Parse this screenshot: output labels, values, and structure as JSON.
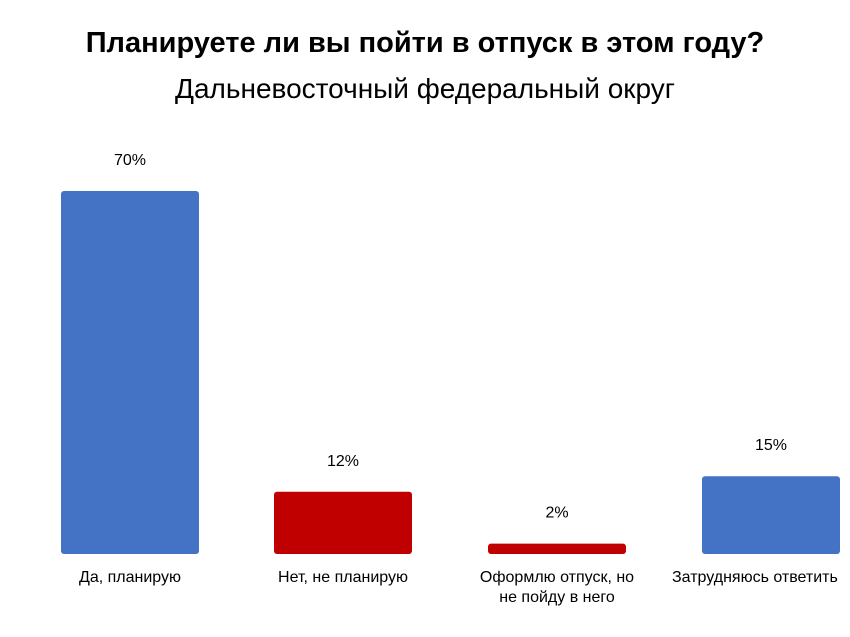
{
  "chart_data": {
    "type": "bar",
    "title": "Планируете ли вы пойти в отпуск в этом году?",
    "subtitle": "Дальневосточный федеральный округ",
    "categories": [
      [
        "Да, планирую"
      ],
      [
        "Нет, не планирую"
      ],
      [
        "Оформлю отпуск, но",
        "не пойду в него"
      ],
      [
        "Затрудняюсь ответить"
      ]
    ],
    "values": [
      70,
      12,
      2,
      15
    ],
    "value_labels": [
      "70%",
      "12%",
      "2%",
      "15%"
    ],
    "colors": [
      "#4472C4",
      "#C00000",
      "#C00000",
      "#4472C4"
    ],
    "ylim": [
      0,
      70
    ],
    "grid": false,
    "legend": "none"
  }
}
